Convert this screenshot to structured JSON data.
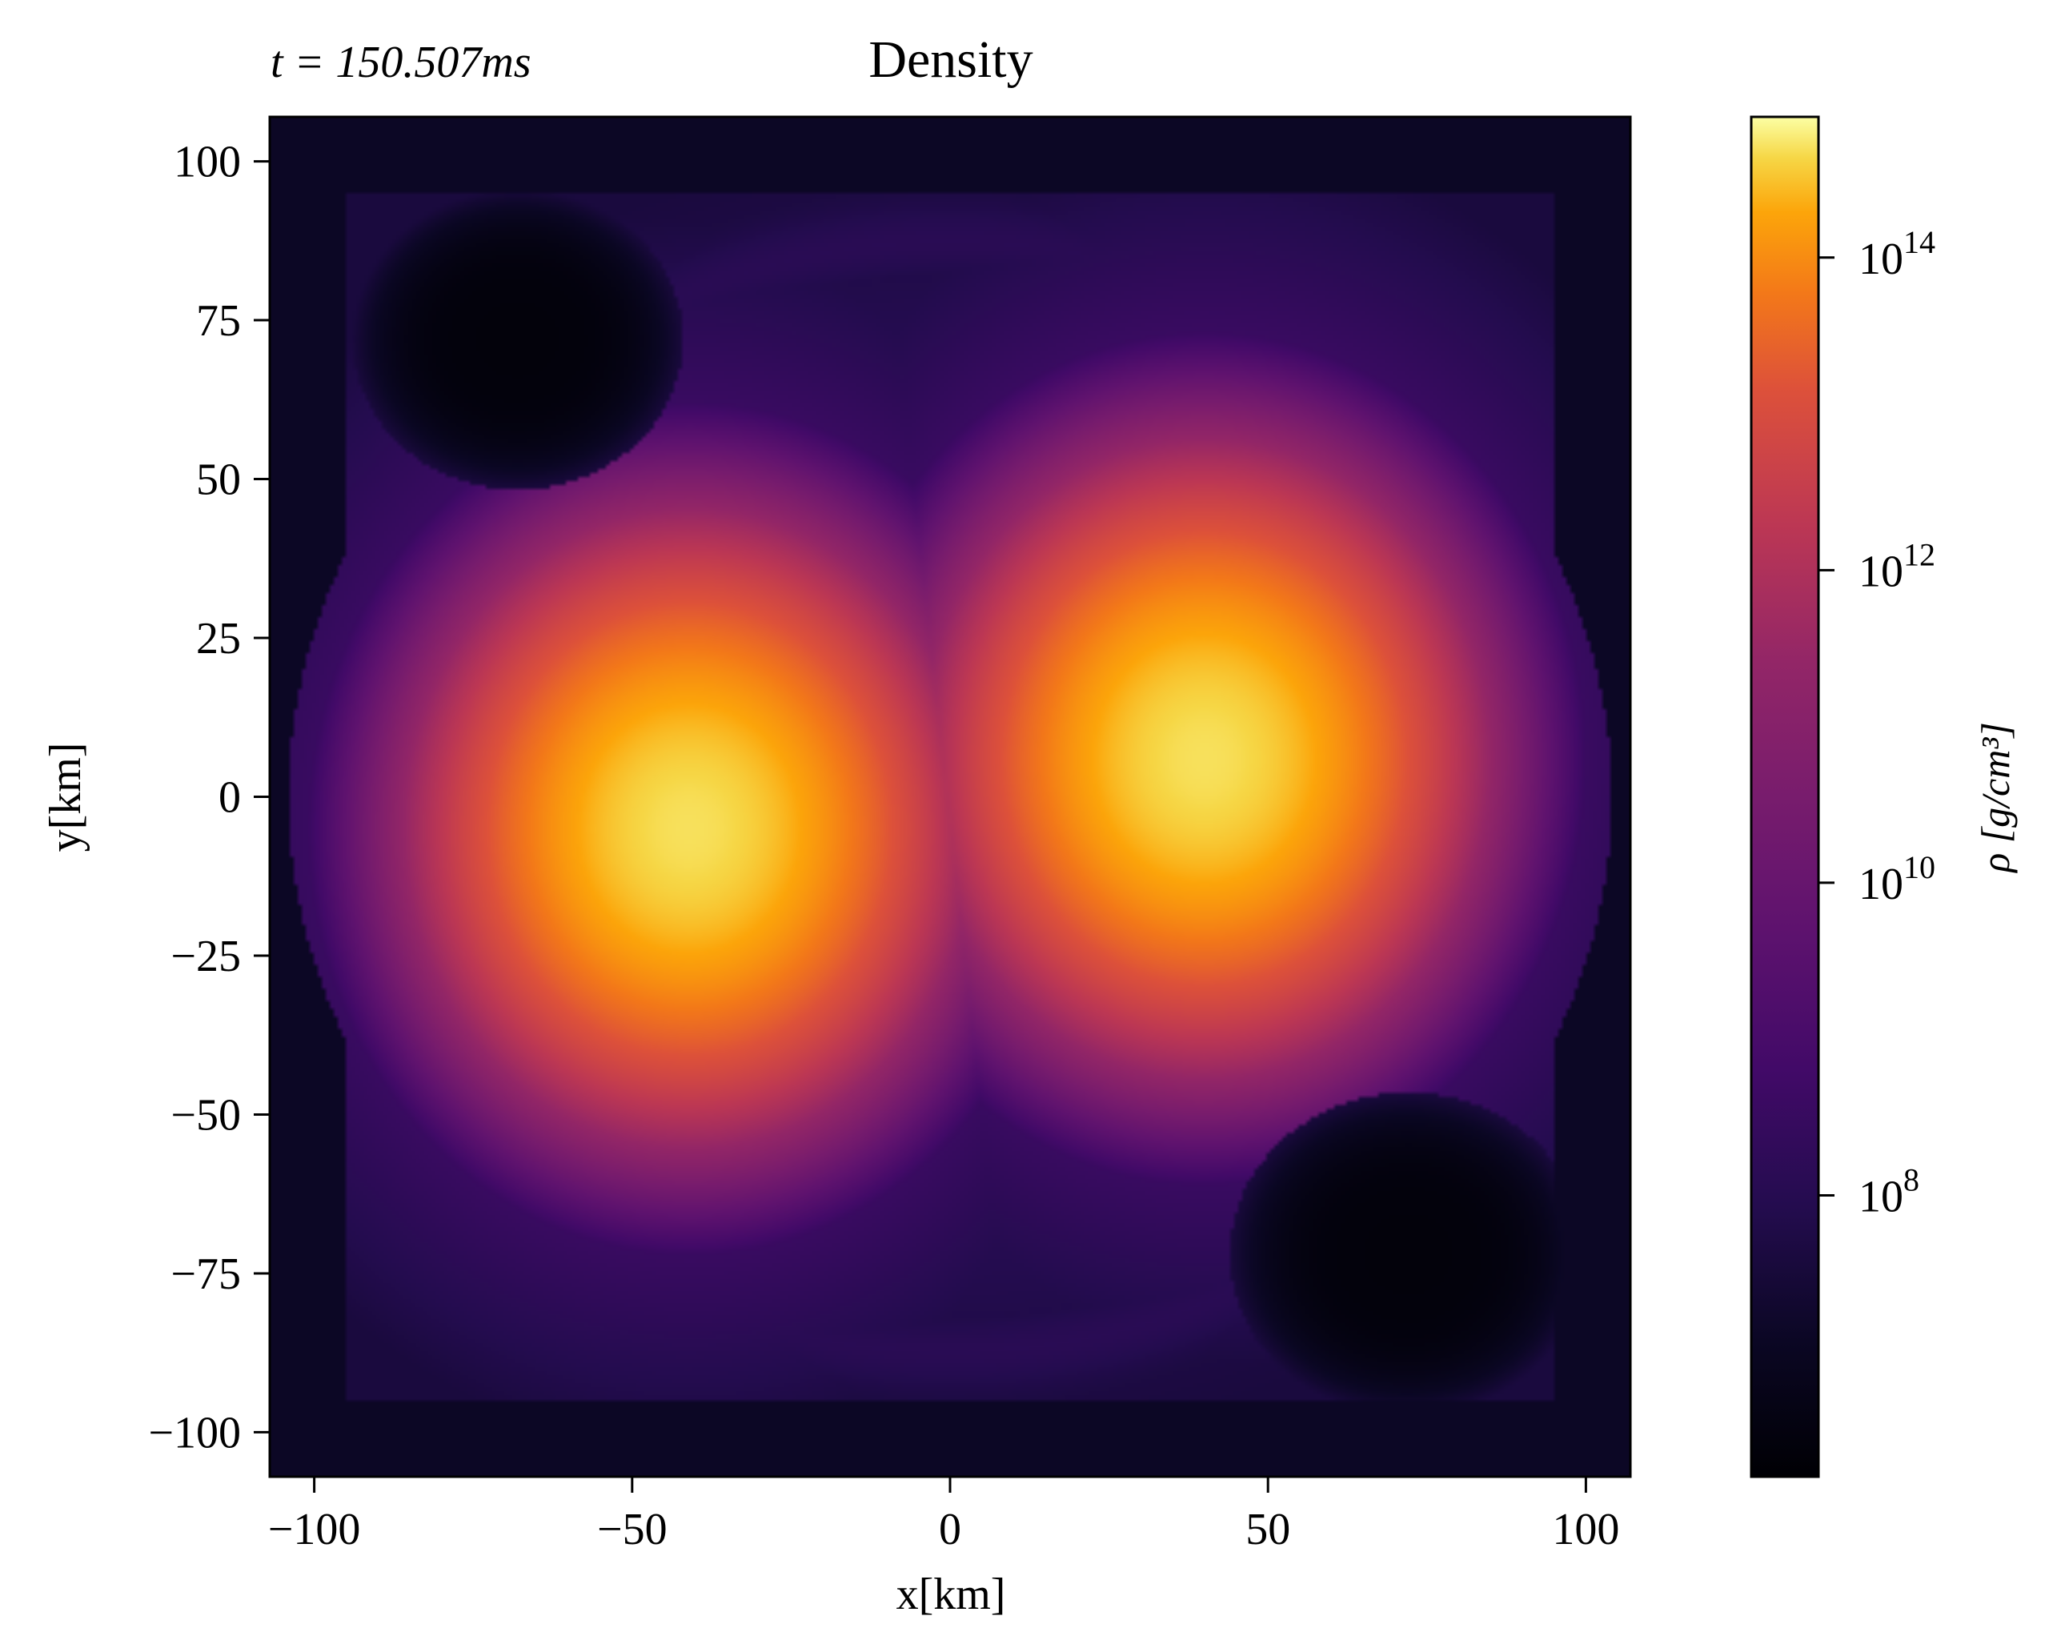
{
  "chart_data": {
    "type": "heatmap",
    "title": "Density",
    "time_label": "t = 150.507ms",
    "time_value_ms": 150.507,
    "xlabel": "x[km]",
    "ylabel": "y[km]",
    "xlim": [
      -107,
      107
    ],
    "ylim": [
      -107,
      107
    ],
    "x_ticks": [
      -100,
      -50,
      0,
      50,
      100
    ],
    "y_ticks": [
      100,
      75,
      50,
      25,
      0,
      -25,
      -50,
      -75,
      -100
    ],
    "x_tick_labels": [
      "−100",
      "−50",
      "0",
      "50",
      "100"
    ],
    "y_tick_labels": [
      "100",
      "75",
      "50",
      "25",
      "0",
      "−25",
      "−50",
      "−75",
      "−100"
    ],
    "colormap": "inferno",
    "colorbar": {
      "label": "ρ [g/cm³]",
      "scale": "log",
      "log10_range": [
        6.2,
        14.9
      ],
      "ticks_log10": [
        8,
        10,
        12,
        14
      ],
      "tick_labels": [
        "10^8",
        "10^10",
        "10^12",
        "10^14"
      ]
    },
    "features": [
      {
        "name": "left-core",
        "center_km": [
          -41,
          -5
        ],
        "peak_log10_density": 14.7,
        "radius_km": 25
      },
      {
        "name": "right-core",
        "center_km": [
          40,
          6
        ],
        "peak_log10_density": 14.7,
        "radius_km": 25
      }
    ],
    "low_density_voids": [
      {
        "name": "upper-left-void",
        "center_km": [
          -68,
          72
        ],
        "radius_km": 26
      },
      {
        "name": "lower-right-void",
        "center_km": [
          72,
          -72
        ],
        "radius_km": 28
      }
    ]
  }
}
